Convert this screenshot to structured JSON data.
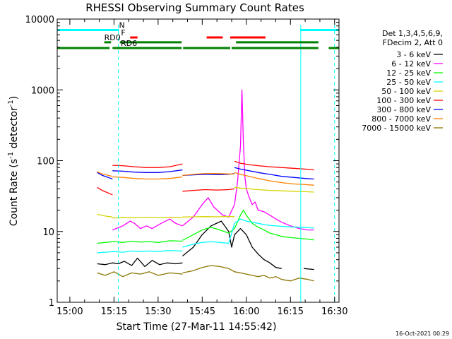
{
  "title": "RHESSI Observing Summary Count Rates",
  "footer_date": "16-Oct-2021 00:29",
  "chart_data": {
    "type": "line",
    "title": "RHESSI Observing Summary Count Rates",
    "xlabel": "Start Time (27-Mar-11 14:55:42)",
    "ylabel": "Count Rate (s⁻¹ detector⁻¹)",
    "ylabel_parts": {
      "base": "Count Rate (s",
      "sup1": "-1",
      "mid": " detector",
      "sup2": "-1",
      "end": ")"
    },
    "x_unit": "minutes of day",
    "xlim": [
      895.7,
      991.5
    ],
    "ylim": [
      1,
      10000
    ],
    "yscale": "log",
    "x_ticks": [
      {
        "value": 900,
        "label": "15:00"
      },
      {
        "value": 915,
        "label": "15:15"
      },
      {
        "value": 930,
        "label": "15:30"
      },
      {
        "value": 945,
        "label": "15:45"
      },
      {
        "value": 960,
        "label": "16:00"
      },
      {
        "value": 975,
        "label": "16:15"
      },
      {
        "value": 990,
        "label": "16:30"
      }
    ],
    "y_ticks": [
      {
        "value": 1,
        "label": "1"
      },
      {
        "value": 10,
        "label": "10"
      },
      {
        "value": 100,
        "label": "100"
      },
      {
        "value": 1000,
        "label": "1000"
      },
      {
        "value": 10000,
        "label": "10000"
      }
    ],
    "legend": {
      "position": "right",
      "header": [
        "Det 1,3,4,5,6,9,",
        "FDecim 2, Att 0"
      ]
    },
    "series": [
      {
        "name": "3 - 6 keV",
        "color": "#000000",
        "segments": [
          {
            "x": [
              909.3,
              912,
              914.5,
              916.5,
              918.5,
              921,
              923,
              925.5,
              928,
              930.5,
              933,
              936,
              938.3
            ],
            "y": [
              3.5,
              3.4,
              3.6,
              3.5,
              3.8,
              3.3,
              4.2,
              3.2,
              3.9,
              3.4,
              3.6,
              3.5,
              3.6
            ]
          },
          {
            "x": [
              938.3,
              942,
              945,
              948,
              951.5,
              954,
              955,
              956,
              958,
              960,
              962,
              964,
              966,
              968,
              970,
              972
            ],
            "y": [
              4.5,
              6,
              9,
              12,
              14,
              10,
              6,
              9,
              11,
              9,
              6,
              4.8,
              4,
              3.6,
              3.1,
              3
            ]
          },
          {
            "x": [
              979.5,
              983
            ],
            "y": [
              3,
              2.9
            ]
          }
        ]
      },
      {
        "name": "6 - 12 keV",
        "color": "#ff00ff",
        "segments": [
          {
            "x": [
              914.5,
              918,
              920.5,
              922,
              924,
              926,
              928,
              931,
              934,
              936,
              938.3
            ],
            "y": [
              10.5,
              12,
              14,
              13,
              11,
              12,
              11,
              13,
              15,
              13,
              12
            ]
          },
          {
            "x": [
              938.3,
              942,
              945,
              947,
              949,
              952,
              954,
              956,
              957,
              958,
              958.5,
              959,
              959.5,
              960,
              961,
              962,
              963,
              964,
              966,
              968,
              970,
              972,
              975,
              978,
              981,
              983
            ],
            "y": [
              12,
              16,
              24,
              30,
              22,
              17,
              16,
              24,
              50,
              160,
              1000,
              180,
              60,
              40,
              30,
              24,
              26,
              20,
              19,
              17,
              15,
              13.5,
              12,
              11,
              10.5,
              10.5
            ]
          }
        ]
      },
      {
        "name": "12 - 25 keV",
        "color": "#00ff00",
        "segments": [
          {
            "x": [
              909.3,
              912,
              915,
              918,
              921,
              924,
              927,
              930,
              934,
              938.3
            ],
            "y": [
              6.8,
              7,
              7.2,
              7,
              7.3,
              7.1,
              7.2,
              7,
              7.4,
              7.3
            ]
          },
          {
            "x": [
              938.3,
              942,
              945,
              948,
              951,
              954,
              956,
              958,
              959,
              960,
              962,
              964,
              966,
              968,
              970,
              972,
              975,
              978,
              981,
              983
            ],
            "y": [
              7.5,
              9,
              10.5,
              11.5,
              10.5,
              9.5,
              11,
              17,
              20,
              17,
              13,
              11.5,
              10.5,
              9.5,
              9,
              8.5,
              8.2,
              8,
              7.8,
              7.6
            ]
          }
        ]
      },
      {
        "name": "25 - 50 keV",
        "color": "#00ffff",
        "segments": [
          {
            "x": [
              909.3,
              912,
              915,
              918,
              921,
              924,
              927,
              930,
              934,
              938.3
            ],
            "y": [
              5,
              5.1,
              5.2,
              5.1,
              5.3,
              5.2,
              5.3,
              5.2,
              5.4,
              5.3
            ]
          },
          {
            "x": [
              938.3,
              942,
              945,
              948,
              951,
              954,
              956,
              958,
              960,
              962,
              964,
              966,
              968,
              970,
              972,
              975,
              978,
              981,
              983
            ],
            "y": [
              6,
              6.6,
              7,
              7.2,
              7,
              6.8,
              13,
              15,
              14,
              13.5,
              13,
              12.5,
              12.2,
              12,
              11.8,
              11.6,
              11.5,
              11.3,
              11.2
            ]
          }
        ]
      },
      {
        "name": "50 - 100 keV",
        "color": "#d4d400",
        "segments": [
          {
            "x": [
              909.3,
              912,
              914.5
            ],
            "y": [
              17.5,
              16.5,
              16
            ]
          },
          {
            "x": [
              914.5,
              918,
              922,
              926,
              930,
              934,
              938.3
            ],
            "y": [
              15.5,
              15.8,
              15.6,
              15.9,
              15.7,
              15.8,
              15.9
            ]
          },
          {
            "x": [
              938.3,
              942,
              946,
              950,
              954,
              956
            ],
            "y": [
              16,
              16.1,
              16.2,
              16.1,
              16.3,
              16.2
            ]
          },
          {
            "x": [
              956,
              958,
              961,
              964,
              968,
              972,
              976,
              980,
              983
            ],
            "y": [
              42,
              41,
              40,
              39,
              38,
              37.5,
              37,
              36.5,
              36
            ]
          }
        ]
      },
      {
        "name": "100 - 300 keV",
        "color": "#ff0000",
        "segments": [
          {
            "x": [
              909.3,
              911,
              913,
              914.5
            ],
            "y": [
              42,
              38,
              35,
              33
            ]
          },
          {
            "x": [
              914.5,
              918,
              922,
              926,
              930,
              934,
              938.3
            ],
            "y": [
              86,
              85,
              82,
              80,
              80,
              82,
              90
            ]
          },
          {
            "x": [
              938.3,
              942,
              946,
              950,
              954,
              956
            ],
            "y": [
              37,
              38,
              39,
              38.5,
              39,
              40
            ]
          },
          {
            "x": [
              956,
              958,
              961,
              964,
              968,
              972,
              976,
              980,
              983
            ],
            "y": [
              98,
              92,
              88,
              85,
              82,
              80,
              78,
              76,
              74
            ]
          }
        ]
      },
      {
        "name": "300 - 800 keV",
        "color": "#0000ff",
        "segments": [
          {
            "x": [
              909.3,
              911,
              913,
              914.5
            ],
            "y": [
              68,
              62,
              58,
              55
            ]
          },
          {
            "x": [
              914.5,
              918,
              922,
              926,
              930,
              934,
              938.3
            ],
            "y": [
              72,
              71,
              69,
              68,
              68,
              70,
              74
            ]
          },
          {
            "x": [
              938.3,
              942,
              946,
              950,
              954,
              956
            ],
            "y": [
              62,
              63,
              64,
              63.5,
              64,
              66
            ]
          },
          {
            "x": [
              956,
              958,
              961,
              964,
              968,
              972,
              976,
              980,
              983
            ],
            "y": [
              80,
              76,
              72,
              68,
              64,
              60,
              58,
              56,
              55
            ]
          }
        ]
      },
      {
        "name": "800 - 7000 keV",
        "color": "#ff8000",
        "segments": [
          {
            "x": [
              909.3,
              911,
              913,
              914.5
            ],
            "y": [
              70,
              65,
              62,
              60
            ]
          },
          {
            "x": [
              914.5,
              918,
              922,
              926,
              930,
              934,
              938.3
            ],
            "y": [
              59,
              58,
              56,
              55,
              55,
              56,
              59
            ]
          },
          {
            "x": [
              938.3,
              942,
              946,
              950,
              954,
              956
            ],
            "y": [
              62,
              64,
              66,
              66,
              65,
              65
            ]
          },
          {
            "x": [
              956,
              958,
              961,
              964,
              968,
              972,
              976,
              980,
              983
            ],
            "y": [
              68,
              64,
              60,
              56,
              52,
              49,
              47,
              46,
              45
            ]
          }
        ]
      },
      {
        "name": "7000 - 15000 keV",
        "color": "#8b7500",
        "segments": [
          {
            "x": [
              909.3,
              912,
              915,
              918,
              921,
              924,
              927,
              930,
              934,
              938.3
            ],
            "y": [
              2.6,
              2.4,
              2.7,
              2.3,
              2.6,
              2.5,
              2.7,
              2.4,
              2.6,
              2.5
            ]
          },
          {
            "x": [
              938.3,
              942,
              945,
              948,
              951,
              954,
              956,
              958,
              960,
              962,
              964,
              966,
              968,
              970,
              972,
              975,
              978,
              981,
              983
            ],
            "y": [
              2.6,
              2.8,
              3.1,
              3.3,
              3.2,
              3,
              2.7,
              2.6,
              2.5,
              2.4,
              2.3,
              2.4,
              2.2,
              2.3,
              2.1,
              2,
              2.2,
              2.1,
              2
            ]
          }
        ]
      }
    ],
    "vertical_markers": [
      {
        "x": 895.7,
        "style": "solid",
        "color": "#00ffff"
      },
      {
        "x": 916.5,
        "style": "dashed",
        "color": "#00ffff"
      },
      {
        "x": 978.5,
        "style": "solid",
        "color": "#00ffff"
      },
      {
        "x": 990.0,
        "style": "dashed",
        "color": "#00ffff"
      }
    ],
    "flag_bars": [
      {
        "label": "N",
        "color": "#00ffff",
        "y": 7000,
        "label_at": 916.7,
        "ranges": [
          [
            895.7,
            916.7
          ],
          [
            978.3,
            991.5
          ]
        ]
      },
      {
        "label": "F",
        "color": "#ff0000",
        "y": 5500,
        "label_at": 917.4,
        "ranges": [
          [
            920.5,
            923
          ],
          [
            946.5,
            952
          ],
          [
            954.5,
            966.5
          ]
        ]
      },
      {
        "label": "RD0",
        "color": "#008000",
        "y": 4700,
        "label_at": 911.7,
        "ranges": [
          [
            911.7,
            914
          ],
          [
            917,
            938
          ],
          [
            956.5,
            984.5
          ]
        ]
      },
      {
        "label": "RD6",
        "color": "#008000",
        "y": 3900,
        "label_at": 917.3,
        "ranges": [
          [
            895.7,
            913.5
          ],
          [
            914.5,
            938
          ],
          [
            938.5,
            954.5
          ],
          [
            955,
            984.5
          ],
          [
            988,
            991.5
          ]
        ]
      }
    ]
  }
}
